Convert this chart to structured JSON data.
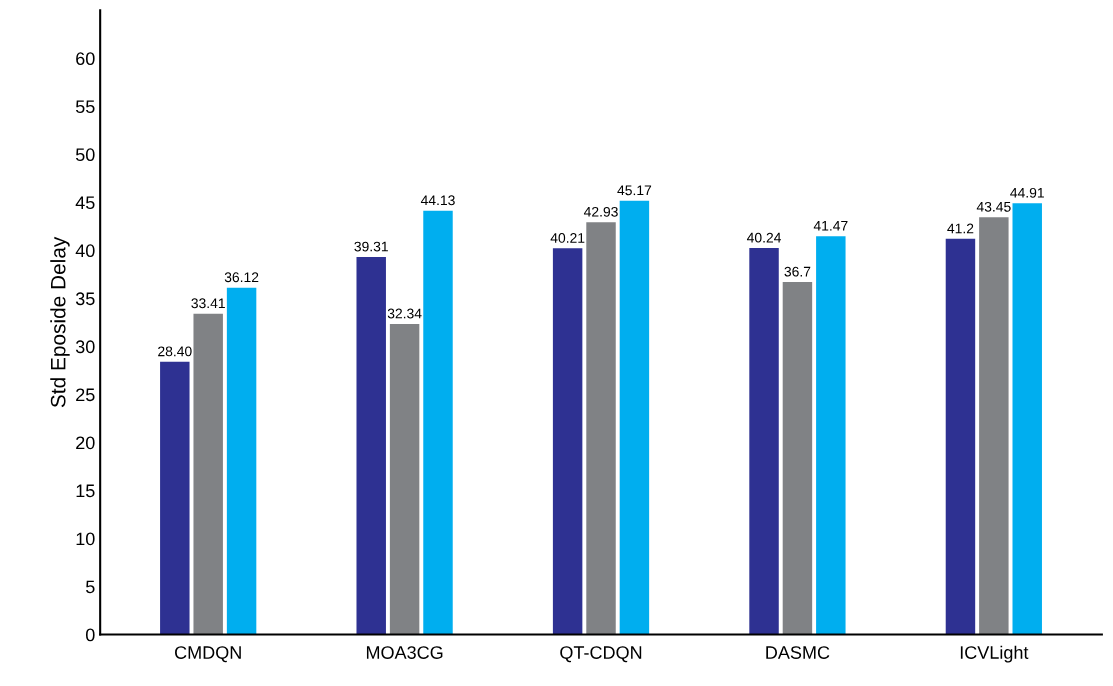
{
  "chart_data": {
    "type": "bar",
    "ylabel": "Std Eposide Delay",
    "categories": [
      "CMDQN",
      "MOA3CG",
      "QT-CDQN",
      "DASMC",
      "ICVLight"
    ],
    "series": [
      {
        "color": "#2e3192",
        "values": [
          28.4,
          39.31,
          40.21,
          40.24,
          41.2
        ],
        "value_labels": [
          "28.40",
          "39.31",
          "40.21",
          "40.24",
          "41.2"
        ]
      },
      {
        "color": "#808285",
        "values": [
          33.41,
          32.34,
          42.93,
          36.7,
          43.45
        ],
        "value_labels": [
          "33.41",
          "32.34",
          "42.93",
          "36.7",
          "43.45"
        ]
      },
      {
        "color": "#00aeef",
        "values": [
          36.12,
          44.13,
          45.17,
          41.47,
          44.91
        ],
        "value_labels": [
          "36.12",
          "44.13",
          "45.17",
          "41.47",
          "44.91"
        ]
      }
    ],
    "ylim": [
      0,
      65
    ],
    "yticks": [
      0,
      5,
      10,
      15,
      20,
      25,
      30,
      35,
      40,
      45,
      50,
      55,
      60
    ],
    "grid": false,
    "legend": false
  }
}
